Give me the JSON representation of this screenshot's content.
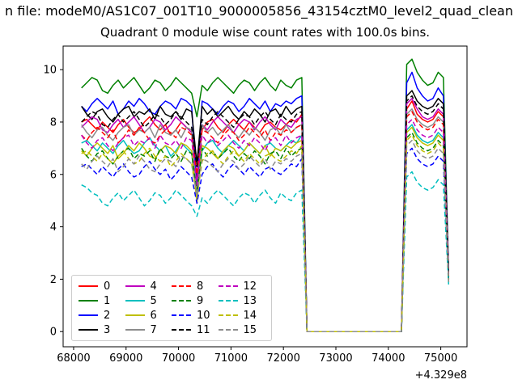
{
  "figure": {
    "title_line1": "n file: modeM0/AS1C07_001T10_9000005856_43154cztM0_level2_quad_clean",
    "title_line2": "Quadrant 0 module wise count rates with 100.0s bins."
  },
  "chart_data": {
    "type": "line",
    "title": "Quadrant 0 module wise count rates with 100.0s bins.",
    "xlabel": "",
    "ylabel": "",
    "grid": false,
    "legend_position": "lower left",
    "x_offset_label": "+4.329e8",
    "xlim": [
      67800,
      75500
    ],
    "ylim": [
      -0.58,
      10.9
    ],
    "x_ticks": [
      68000,
      69000,
      70000,
      71000,
      72000,
      73000,
      74000,
      75000
    ],
    "y_ticks": [
      0,
      2,
      4,
      6,
      8,
      10
    ],
    "x_start": 68150,
    "x_step": 100,
    "n_points": 71,
    "series": [
      {
        "name": "0",
        "color": "#ff0000",
        "linestyle": "solid",
        "y": [
          8.0,
          8.1,
          7.9,
          7.7,
          8.0,
          7.8,
          7.6,
          7.9,
          8.1,
          7.8,
          7.6,
          7.7,
          8.0,
          8.2,
          7.9,
          7.7,
          7.9,
          7.5,
          7.7,
          8.0,
          7.8,
          7.6,
          5.9,
          7.7,
          8.0,
          8.1,
          7.8,
          7.6,
          7.9,
          8.1,
          7.9,
          7.7,
          8.0,
          7.8,
          7.6,
          7.9,
          8.0,
          7.8,
          7.7,
          7.9,
          8.1,
          8.0,
          8.3,
          0,
          0,
          0,
          0,
          0,
          0,
          0,
          0,
          0,
          0,
          0,
          0,
          0,
          0,
          0,
          0,
          0,
          0,
          0,
          8.5,
          8.8,
          8.3,
          8.1,
          8.0,
          8.1,
          8.4,
          8.2,
          2.0
        ]
      },
      {
        "name": "1",
        "color": "#008000",
        "linestyle": "solid",
        "y": [
          9.3,
          9.5,
          9.7,
          9.6,
          9.2,
          9.1,
          9.4,
          9.6,
          9.3,
          9.5,
          9.7,
          9.4,
          9.1,
          9.3,
          9.6,
          9.5,
          9.2,
          9.4,
          9.7,
          9.5,
          9.3,
          9.1,
          8.2,
          9.4,
          9.2,
          9.5,
          9.7,
          9.5,
          9.3,
          9.1,
          9.4,
          9.6,
          9.5,
          9.2,
          9.5,
          9.7,
          9.4,
          9.2,
          9.6,
          9.4,
          9.3,
          9.6,
          9.7,
          0,
          0,
          0,
          0,
          0,
          0,
          0,
          0,
          0,
          0,
          0,
          0,
          0,
          0,
          0,
          0,
          0,
          0,
          0,
          10.2,
          10.4,
          9.9,
          9.6,
          9.4,
          9.5,
          9.9,
          9.7,
          2.3
        ]
      },
      {
        "name": "2",
        "color": "#0000ff",
        "linestyle": "solid",
        "y": [
          8.6,
          8.4,
          8.7,
          8.9,
          8.7,
          8.5,
          8.8,
          8.3,
          8.5,
          8.8,
          8.6,
          8.9,
          8.7,
          8.4,
          8.3,
          8.6,
          8.8,
          8.7,
          8.5,
          8.9,
          8.8,
          8.6,
          5.4,
          8.8,
          8.7,
          8.5,
          8.3,
          8.6,
          8.8,
          8.7,
          8.4,
          8.6,
          8.9,
          8.7,
          8.5,
          8.8,
          8.4,
          8.7,
          8.6,
          8.8,
          8.7,
          8.9,
          9.0,
          0,
          0,
          0,
          0,
          0,
          0,
          0,
          0,
          0,
          0,
          0,
          0,
          0,
          0,
          0,
          0,
          0,
          0,
          0,
          9.5,
          9.9,
          9.3,
          9.0,
          8.8,
          8.9,
          9.3,
          9.0,
          2.2
        ]
      },
      {
        "name": "3",
        "color": "#000000",
        "linestyle": "solid",
        "y": [
          8.6,
          8.3,
          8.1,
          8.4,
          8.5,
          8.2,
          8.0,
          8.3,
          8.5,
          8.6,
          8.2,
          8.4,
          8.3,
          8.5,
          8.1,
          8.6,
          8.3,
          8.2,
          8.4,
          8.1,
          8.5,
          8.4,
          6.4,
          8.6,
          8.3,
          8.5,
          8.2,
          8.4,
          8.6,
          8.3,
          8.1,
          8.4,
          8.2,
          8.5,
          8.3,
          8.0,
          8.4,
          8.5,
          8.2,
          8.6,
          8.3,
          8.5,
          8.6,
          0,
          0,
          0,
          0,
          0,
          0,
          0,
          0,
          0,
          0,
          0,
          0,
          0,
          0,
          0,
          0,
          0,
          0,
          0,
          9.0,
          9.2,
          8.8,
          8.6,
          8.5,
          8.6,
          8.9,
          8.7,
          2.1
        ]
      },
      {
        "name": "4",
        "color": "#bf00bf",
        "linestyle": "solid",
        "y": [
          7.8,
          8.0,
          8.2,
          8.1,
          7.7,
          7.6,
          7.9,
          8.1,
          7.8,
          8.0,
          8.2,
          7.9,
          7.6,
          7.8,
          8.1,
          8.0,
          7.7,
          7.9,
          8.2,
          8.0,
          7.8,
          7.6,
          5.3,
          7.9,
          7.7,
          8.0,
          8.2,
          8.0,
          7.8,
          7.6,
          7.9,
          8.1,
          8.0,
          7.7,
          8.0,
          8.2,
          7.9,
          7.7,
          8.1,
          7.9,
          7.8,
          8.1,
          8.2,
          0,
          0,
          0,
          0,
          0,
          0,
          0,
          0,
          0,
          0,
          0,
          0,
          0,
          0,
          0,
          0,
          0,
          0,
          0,
          8.7,
          8.9,
          8.5,
          8.2,
          8.1,
          8.2,
          8.5,
          8.3,
          2.1
        ]
      },
      {
        "name": "5",
        "color": "#00bfbf",
        "linestyle": "solid",
        "y": [
          7.2,
          7.3,
          7.1,
          6.9,
          7.2,
          7.0,
          6.8,
          7.1,
          7.3,
          7.0,
          6.8,
          6.9,
          7.2,
          7.4,
          7.1,
          6.9,
          7.1,
          6.7,
          6.9,
          7.2,
          7.0,
          6.8,
          5.2,
          6.9,
          7.2,
          7.3,
          7.0,
          6.8,
          7.1,
          7.3,
          7.1,
          6.9,
          7.2,
          7.0,
          6.8,
          7.1,
          7.2,
          7.0,
          6.9,
          7.1,
          7.3,
          7.2,
          7.5,
          0,
          0,
          0,
          0,
          0,
          0,
          0,
          0,
          0,
          0,
          0,
          0,
          0,
          0,
          0,
          0,
          0,
          0,
          0,
          7.7,
          7.9,
          7.5,
          7.3,
          7.2,
          7.3,
          7.6,
          7.4,
          2.0
        ]
      },
      {
        "name": "6",
        "color": "#bfbf00",
        "linestyle": "solid",
        "y": [
          6.9,
          6.7,
          7.0,
          7.2,
          7.0,
          6.8,
          7.1,
          6.6,
          6.8,
          7.1,
          6.9,
          7.2,
          7.0,
          6.7,
          6.6,
          6.9,
          7.1,
          7.0,
          6.8,
          7.2,
          7.1,
          6.9,
          4.9,
          7.1,
          7.0,
          6.8,
          6.6,
          6.9,
          7.1,
          7.0,
          6.7,
          6.9,
          7.2,
          7.0,
          6.8,
          7.1,
          6.7,
          7.0,
          6.9,
          7.1,
          7.0,
          7.2,
          7.3,
          0,
          0,
          0,
          0,
          0,
          0,
          0,
          0,
          0,
          0,
          0,
          0,
          0,
          0,
          0,
          0,
          0,
          0,
          0,
          7.6,
          7.8,
          7.4,
          7.2,
          7.1,
          7.2,
          7.5,
          7.3,
          1.9
        ]
      },
      {
        "name": "7",
        "color": "#8c8c8c",
        "linestyle": "solid",
        "y": [
          7.9,
          7.6,
          7.4,
          7.7,
          7.8,
          7.5,
          7.3,
          7.6,
          7.8,
          7.9,
          7.5,
          7.7,
          7.6,
          7.8,
          7.4,
          7.9,
          7.6,
          7.5,
          7.7,
          7.4,
          7.8,
          7.7,
          5.0,
          7.9,
          7.6,
          7.8,
          7.5,
          7.7,
          7.9,
          7.6,
          7.4,
          7.7,
          7.5,
          7.8,
          7.6,
          7.3,
          7.7,
          7.8,
          7.5,
          7.9,
          7.6,
          7.8,
          7.9,
          0,
          0,
          0,
          0,
          0,
          0,
          0,
          0,
          0,
          0,
          0,
          0,
          0,
          0,
          0,
          0,
          0,
          0,
          0,
          8.3,
          8.5,
          8.1,
          7.9,
          7.8,
          7.9,
          8.2,
          8.0,
          2.0
        ]
      },
      {
        "name": "8",
        "color": "#ff0000",
        "linestyle": "dashed",
        "y": [
          7.5,
          7.3,
          7.6,
          7.8,
          7.6,
          7.4,
          7.7,
          7.2,
          7.4,
          7.7,
          7.5,
          7.8,
          7.6,
          7.3,
          7.2,
          7.5,
          7.7,
          7.6,
          7.4,
          7.8,
          7.7,
          7.5,
          6.0,
          7.7,
          7.6,
          7.4,
          7.2,
          7.5,
          7.7,
          7.6,
          7.3,
          7.5,
          7.8,
          7.6,
          7.4,
          7.7,
          7.3,
          7.6,
          7.5,
          7.7,
          7.6,
          7.8,
          7.9,
          0,
          0,
          0,
          0,
          0,
          0,
          0,
          0,
          0,
          0,
          0,
          0,
          0,
          0,
          0,
          0,
          0,
          0,
          0,
          8.2,
          8.4,
          8.0,
          7.8,
          7.7,
          7.8,
          8.1,
          7.9,
          2.0
        ]
      },
      {
        "name": "9",
        "color": "#008000",
        "linestyle": "dashed",
        "y": [
          7.0,
          6.7,
          6.5,
          6.8,
          6.9,
          6.6,
          6.4,
          6.7,
          6.9,
          7.0,
          6.6,
          6.8,
          6.7,
          6.9,
          6.5,
          7.0,
          6.7,
          6.6,
          6.8,
          6.5,
          6.9,
          6.8,
          5.3,
          7.0,
          6.7,
          6.9,
          6.6,
          6.8,
          7.0,
          6.7,
          6.5,
          6.8,
          6.6,
          6.9,
          6.7,
          6.4,
          6.8,
          6.9,
          6.6,
          7.0,
          6.7,
          6.9,
          7.0,
          0,
          0,
          0,
          0,
          0,
          0,
          0,
          0,
          0,
          0,
          0,
          0,
          0,
          0,
          0,
          0,
          0,
          0,
          0,
          7.4,
          7.6,
          7.2,
          7.0,
          6.9,
          7.0,
          7.3,
          7.1,
          1.9
        ]
      },
      {
        "name": "10",
        "color": "#0000ff",
        "linestyle": "dashed",
        "y": [
          6.3,
          6.4,
          6.2,
          6.0,
          6.3,
          6.1,
          5.9,
          6.2,
          6.4,
          6.1,
          5.9,
          6.0,
          6.3,
          6.5,
          6.2,
          6.0,
          6.2,
          5.8,
          6.0,
          6.3,
          6.1,
          5.9,
          4.9,
          6.0,
          6.3,
          6.4,
          6.1,
          5.9,
          6.2,
          6.4,
          6.2,
          6.0,
          6.3,
          6.1,
          5.9,
          6.2,
          6.3,
          6.1,
          6.0,
          6.2,
          6.4,
          6.3,
          6.6,
          0,
          0,
          0,
          0,
          0,
          0,
          0,
          0,
          0,
          0,
          0,
          0,
          0,
          0,
          0,
          0,
          0,
          0,
          0,
          6.8,
          7.0,
          6.6,
          6.4,
          6.3,
          6.4,
          6.7,
          6.5,
          1.9
        ]
      },
      {
        "name": "11",
        "color": "#000000",
        "linestyle": "dashed",
        "y": [
          8.0,
          8.2,
          8.4,
          8.3,
          7.9,
          7.8,
          8.1,
          8.3,
          8.0,
          8.2,
          8.4,
          8.1,
          7.8,
          8.0,
          8.3,
          8.2,
          7.9,
          8.1,
          8.4,
          8.2,
          8.0,
          7.8,
          6.3,
          8.1,
          7.9,
          8.2,
          8.4,
          8.2,
          8.0,
          7.8,
          8.1,
          8.3,
          8.2,
          7.9,
          8.2,
          8.4,
          8.1,
          7.9,
          8.3,
          8.1,
          8.0,
          8.3,
          8.4,
          0,
          0,
          0,
          0,
          0,
          0,
          0,
          0,
          0,
          0,
          0,
          0,
          0,
          0,
          0,
          0,
          0,
          0,
          0,
          8.8,
          9.0,
          8.6,
          8.4,
          8.3,
          8.4,
          8.7,
          8.5,
          2.1
        ]
      },
      {
        "name": "12",
        "color": "#bf00bf",
        "linestyle": "dashed",
        "y": [
          7.5,
          7.2,
          7.0,
          7.3,
          7.4,
          7.1,
          6.9,
          7.2,
          7.4,
          7.5,
          7.1,
          7.3,
          7.2,
          7.4,
          7.0,
          7.5,
          7.2,
          7.1,
          7.3,
          7.0,
          7.4,
          7.3,
          5.6,
          7.5,
          7.2,
          7.4,
          7.1,
          7.3,
          7.5,
          7.2,
          7.0,
          7.3,
          7.1,
          7.4,
          7.2,
          6.9,
          7.3,
          7.4,
          7.1,
          7.5,
          7.2,
          7.4,
          7.5,
          0,
          0,
          0,
          0,
          0,
          0,
          0,
          0,
          0,
          0,
          0,
          0,
          0,
          0,
          0,
          0,
          0,
          0,
          0,
          7.9,
          8.1,
          7.7,
          7.5,
          7.4,
          7.5,
          7.8,
          7.6,
          2.0
        ]
      },
      {
        "name": "13",
        "color": "#00bfbf",
        "linestyle": "dashed",
        "y": [
          5.6,
          5.5,
          5.3,
          5.2,
          4.9,
          4.8,
          5.1,
          5.3,
          5.0,
          5.2,
          5.4,
          5.1,
          4.8,
          5.0,
          5.3,
          5.2,
          4.9,
          5.1,
          5.4,
          5.2,
          5.0,
          4.8,
          4.4,
          5.1,
          4.9,
          5.2,
          5.4,
          5.2,
          5.0,
          4.8,
          5.1,
          5.3,
          5.2,
          4.9,
          5.2,
          5.4,
          5.1,
          4.9,
          5.3,
          5.1,
          5.0,
          5.3,
          5.4,
          0,
          0,
          0,
          0,
          0,
          0,
          0,
          0,
          0,
          0,
          0,
          0,
          0,
          0,
          0,
          0,
          0,
          0,
          0,
          5.9,
          6.1,
          5.7,
          5.5,
          5.4,
          5.5,
          5.8,
          5.6,
          1.8
        ]
      },
      {
        "name": "14",
        "color": "#bfbf00",
        "linestyle": "dashed",
        "y": [
          6.8,
          6.9,
          6.7,
          6.5,
          6.8,
          6.6,
          6.4,
          6.7,
          6.9,
          6.6,
          6.4,
          6.5,
          6.8,
          7.0,
          6.7,
          6.5,
          6.7,
          6.3,
          6.5,
          6.8,
          6.6,
          6.4,
          5.1,
          6.5,
          6.8,
          6.9,
          6.6,
          6.4,
          6.7,
          6.9,
          6.7,
          6.5,
          6.8,
          6.6,
          6.4,
          6.7,
          6.8,
          6.6,
          6.5,
          6.7,
          6.9,
          6.8,
          7.1,
          0,
          0,
          0,
          0,
          0,
          0,
          0,
          0,
          0,
          0,
          0,
          0,
          0,
          0,
          0,
          0,
          0,
          0,
          0,
          7.3,
          7.5,
          7.1,
          6.9,
          6.8,
          6.9,
          7.2,
          7.0,
          1.9
        ]
      },
      {
        "name": "15",
        "color": "#8c8c8c",
        "linestyle": "dashed",
        "y": [
          6.4,
          6.2,
          6.5,
          6.7,
          6.5,
          6.3,
          6.6,
          6.1,
          6.3,
          6.6,
          6.4,
          6.7,
          6.5,
          6.2,
          6.1,
          6.4,
          6.6,
          6.5,
          6.3,
          6.7,
          6.6,
          6.4,
          5.2,
          6.6,
          6.5,
          6.3,
          6.1,
          6.4,
          6.6,
          6.5,
          6.2,
          6.4,
          6.7,
          6.5,
          6.3,
          6.6,
          6.2,
          6.5,
          6.4,
          6.6,
          6.5,
          6.7,
          6.8,
          0,
          0,
          0,
          0,
          0,
          0,
          0,
          0,
          0,
          0,
          0,
          0,
          0,
          0,
          0,
          0,
          0,
          0,
          0,
          7.1,
          7.3,
          6.9,
          6.7,
          6.6,
          6.7,
          7.0,
          6.8,
          1.9
        ]
      }
    ]
  }
}
